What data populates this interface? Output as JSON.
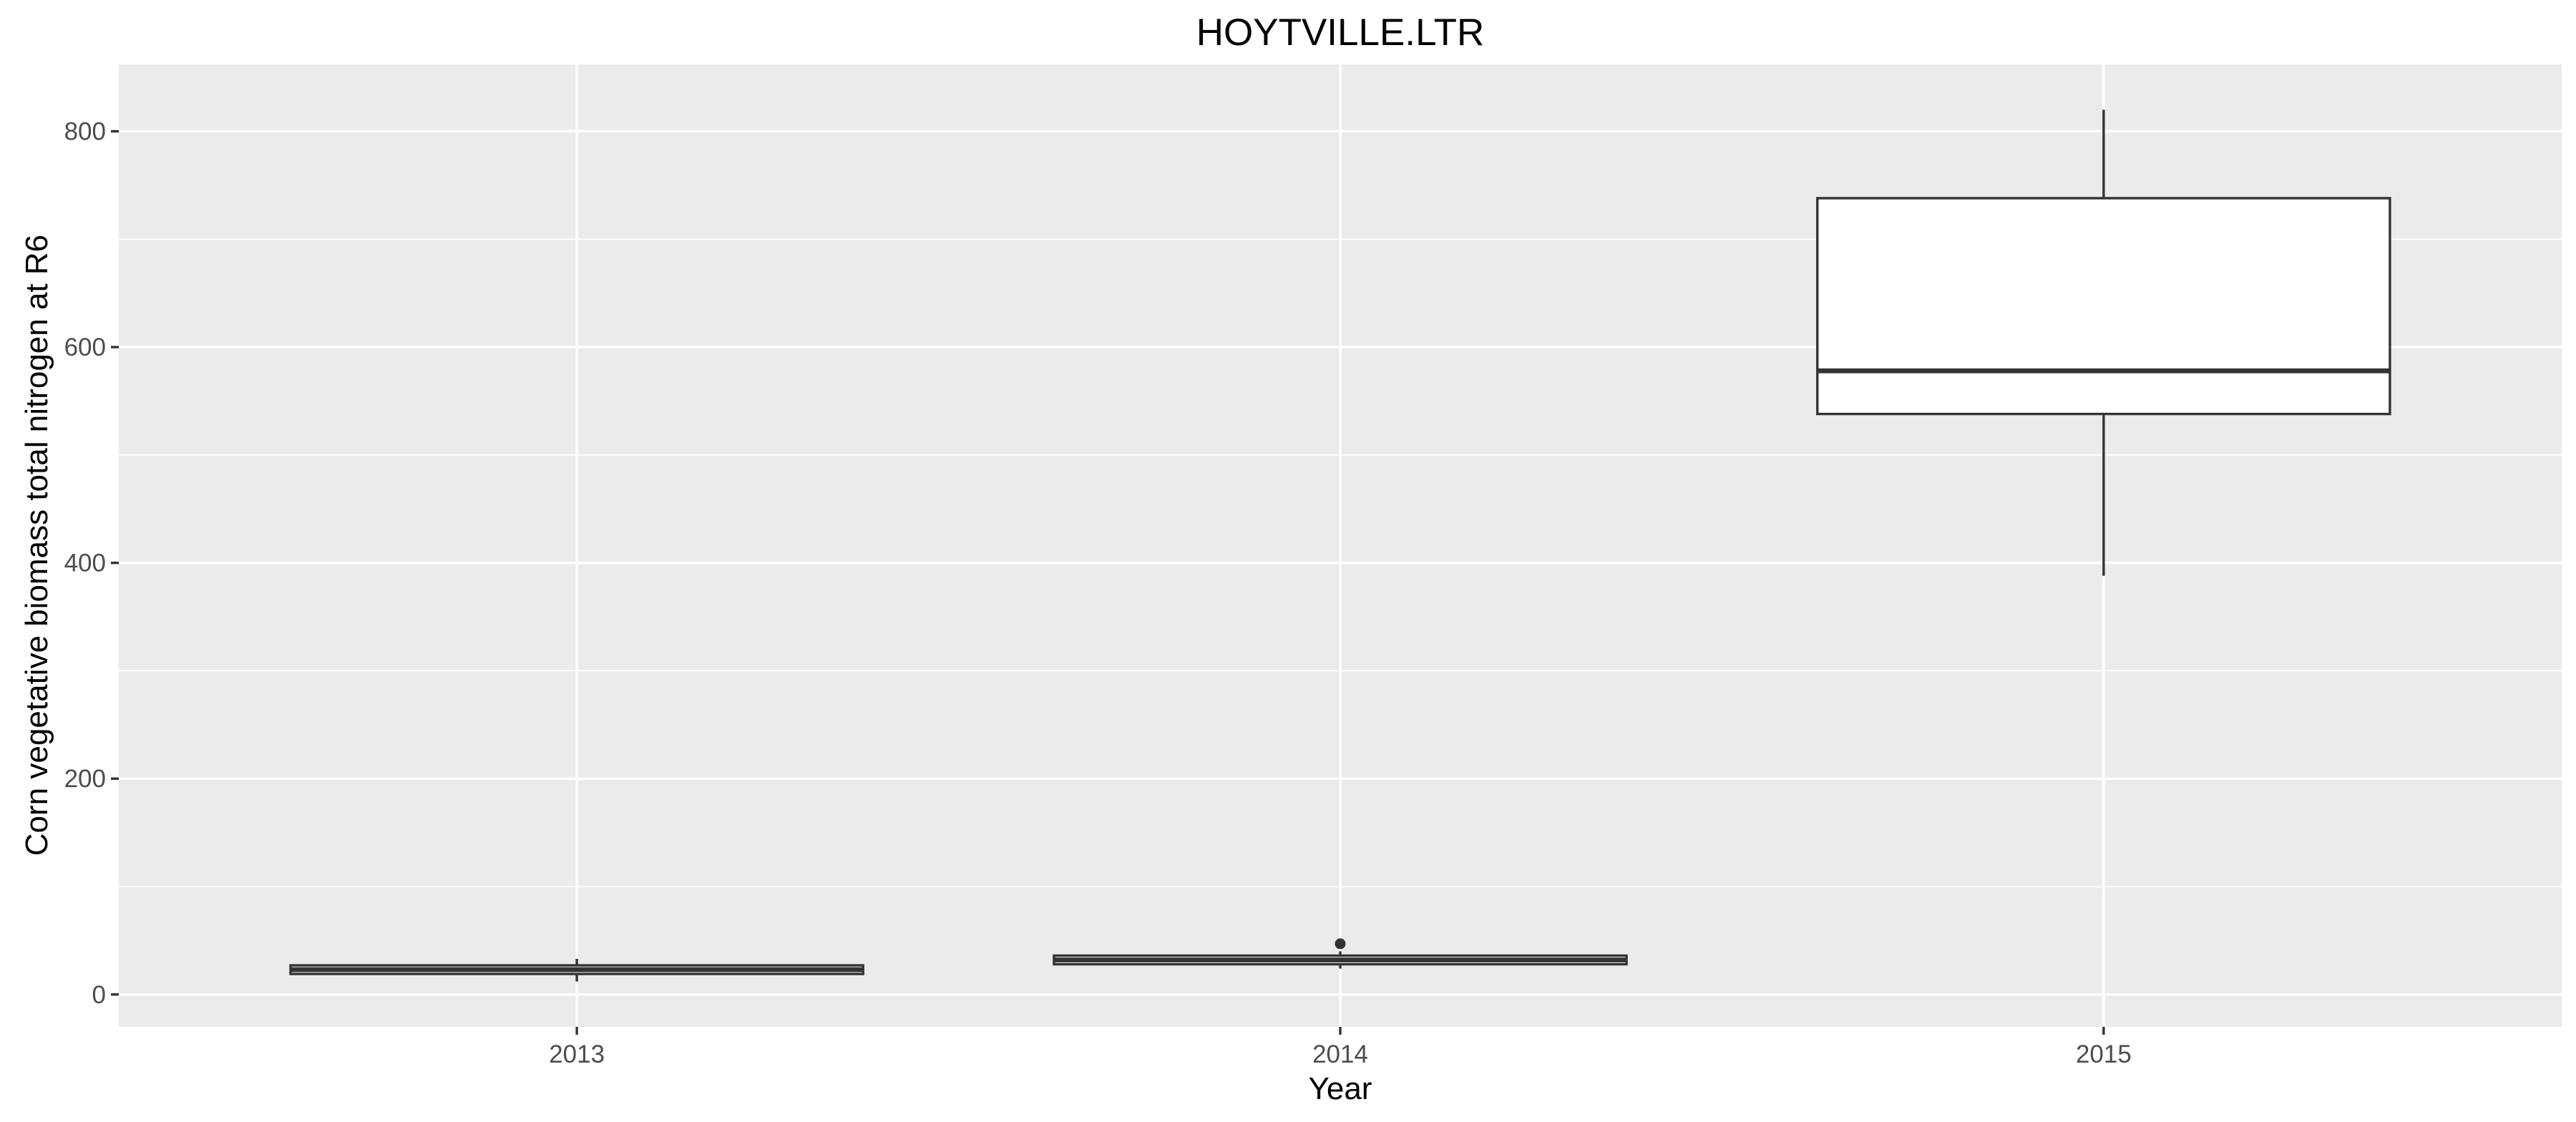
{
  "chart_data": {
    "type": "box",
    "title": "HOYTVILLE.LTR",
    "xlabel": "Year",
    "ylabel": "Corn vegetative biomass total nitrogen at R6",
    "categories": [
      "2013",
      "2014",
      "2015"
    ],
    "ylim": [
      -30,
      862
    ],
    "yticks": [
      0,
      200,
      400,
      600,
      800
    ],
    "grid": true,
    "legend": "none",
    "boxes": [
      {
        "category": "2013",
        "min": 12,
        "q1": 19,
        "median": 23,
        "q3": 27,
        "max": 33,
        "outliers": []
      },
      {
        "category": "2014",
        "min": 24,
        "q1": 28,
        "median": 32,
        "q3": 36,
        "max": 40,
        "outliers": [
          47
        ]
      },
      {
        "category": "2015",
        "min": 388,
        "q1": 538,
        "median": 578,
        "q3": 738,
        "max": 820,
        "outliers": []
      }
    ],
    "colors": {
      "panel_background": "#ebebeb",
      "grid": "#ffffff",
      "box_fill": "#ffffff",
      "box_line": "#333333",
      "tick_text": "#4d4d4d"
    }
  }
}
